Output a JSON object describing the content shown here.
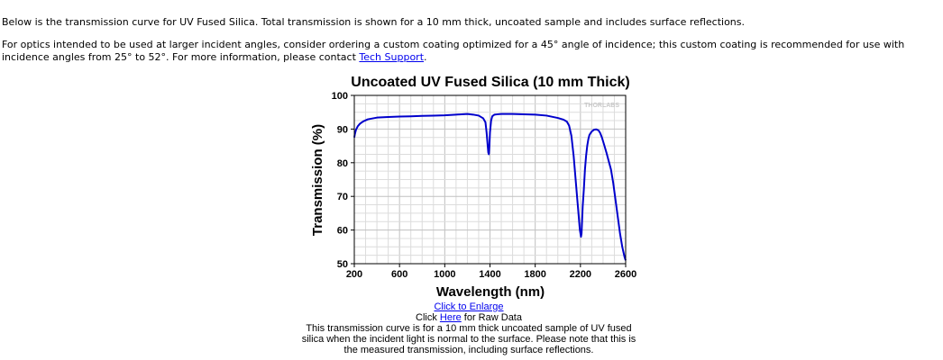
{
  "intro": {
    "line1": "Below is the transmission curve for UV Fused Silica. Total transmission is shown for a 10 mm thick, uncoated sample and includes surface reflections.",
    "line2_text": "For optics intended to be used at larger incident angles, consider ordering a custom coating optimized for a 45° angle of incidence; this custom coating is recommended for use with incidence angles from 25° to 52°. For more information, please contact ",
    "line2_link": "Tech Support",
    "line2_end": "."
  },
  "chart_data": {
    "type": "line",
    "title": "Uncoated UV Fused Silica (10 mm Thick)",
    "xlabel": "Wavelength (nm)",
    "ylabel": "Transmission (%)",
    "xlim": [
      200,
      2600
    ],
    "ylim": [
      50,
      100
    ],
    "xticks": [
      200,
      600,
      1000,
      1400,
      1800,
      2200,
      2600
    ],
    "yticks": [
      50,
      60,
      70,
      80,
      90,
      100
    ],
    "grid": true,
    "watermark": "THORLABS",
    "line_color": "#0000cc",
    "series": [
      {
        "x": [
          200,
          205,
          215,
          230,
          250,
          280,
          320,
          400,
          500,
          600,
          700,
          800,
          900,
          1000,
          1100,
          1150,
          1200,
          1250,
          1300,
          1340,
          1360,
          1370,
          1380,
          1385,
          1390,
          1395,
          1400,
          1410,
          1420,
          1440,
          1470,
          1500,
          1600,
          1700,
          1800,
          1900,
          2000,
          2050,
          2080,
          2100,
          2120,
          2140,
          2160,
          2175,
          2185,
          2195,
          2205,
          2210,
          2215,
          2220,
          2230,
          2240,
          2250,
          2260,
          2270,
          2280,
          2300,
          2320,
          2340,
          2360,
          2375,
          2390,
          2410,
          2430,
          2450,
          2470,
          2490,
          2510,
          2530,
          2550,
          2570,
          2590,
          2600
        ],
        "y": [
          87.5,
          88.5,
          89.8,
          90.8,
          91.6,
          92.3,
          92.9,
          93.4,
          93.6,
          93.7,
          93.8,
          93.9,
          94.0,
          94.1,
          94.3,
          94.4,
          94.5,
          94.3,
          94.0,
          93.2,
          92.0,
          89.0,
          85.0,
          83.0,
          82.5,
          85.0,
          89.0,
          92.5,
          93.8,
          94.3,
          94.4,
          94.5,
          94.5,
          94.4,
          94.3,
          94.0,
          93.3,
          92.8,
          92.2,
          91.0,
          88.0,
          82.0,
          74.0,
          68.0,
          64.0,
          60.0,
          58.0,
          59.0,
          63.0,
          67.0,
          72.0,
          78.0,
          82.0,
          85.0,
          87.0,
          88.3,
          89.3,
          89.8,
          89.9,
          89.6,
          88.8,
          87.5,
          85.3,
          83.0,
          80.5,
          78.0,
          74.0,
          69.0,
          64.0,
          59.0,
          55.0,
          52.0,
          51.0
        ]
      }
    ]
  },
  "links": {
    "enlarge": "Click to Enlarge",
    "raw_prefix": "Click ",
    "raw_link": "Here",
    "raw_suffix": " for Raw Data"
  },
  "caption": "This transmission curve is for a 10 mm thick uncoated sample of UV fused silica when the incident light is normal to the surface. Please note that this is the measured transmission, including surface reflections."
}
